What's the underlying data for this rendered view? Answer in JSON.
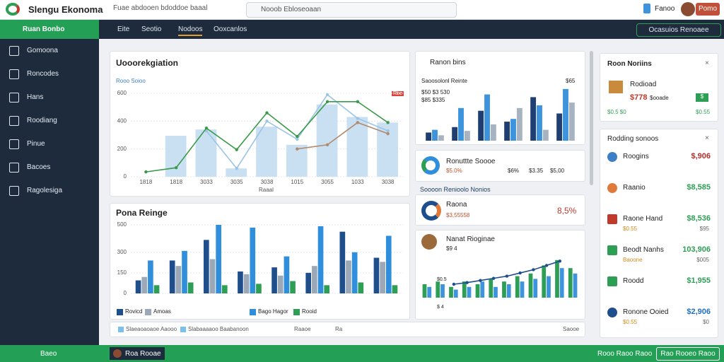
{
  "topbar": {
    "brand": "Slengu Ekonoma",
    "search1": "Fuae abdooen bdoddoe baaal",
    "search2": "Nooob Ebloseoaan",
    "user_action": "Pomo",
    "badge": "Fanoo"
  },
  "navbar": {
    "section": "Ruan Bonbo",
    "tabs": [
      "Eite",
      "Seotio",
      "Nodoos",
      "Ooxcanlos"
    ],
    "button": "Ocasuios Renoaee"
  },
  "sidebar": [
    "Gomoona",
    "Roncodes",
    "Hans",
    "Roodiang",
    "Pinue",
    "Bacoes",
    "Ragolesiga"
  ],
  "main_chart": {
    "type": "bar-line",
    "title": "Uooorekgiation",
    "subtitle": "Rooo Soioo",
    "badge": "Rbe",
    "x_label": "Raaal",
    "categories": [
      "1818",
      "1818",
      "3033",
      "3035",
      "3038",
      "1015",
      "3055",
      "1033",
      "3038"
    ],
    "ylim": [
      0,
      600
    ],
    "yticks": [
      0,
      200,
      400,
      600
    ],
    "grid": true,
    "series": [
      {
        "type": "bar",
        "color": "#c9e0f3",
        "values": [
          null,
          295,
          340,
          60,
          360,
          230,
          520,
          430,
          390
        ]
      },
      {
        "type": "line",
        "color": "#9cc4e4",
        "values": [
          null,
          null,
          330,
          60,
          400,
          270,
          590,
          420,
          330
        ]
      },
      {
        "type": "line",
        "color": "#b08a6e",
        "values": [
          null,
          null,
          null,
          null,
          null,
          200,
          230,
          390,
          310
        ]
      },
      {
        "type": "line",
        "color": "#3a9a4a",
        "values": [
          35,
          65,
          350,
          195,
          460,
          290,
          540,
          540,
          390
        ]
      }
    ]
  },
  "bar_chart": {
    "type": "bar",
    "title": "Pona Reinge",
    "ylim": [
      0,
      500
    ],
    "yticks": [
      0,
      150,
      300,
      500
    ],
    "grid": true,
    "series": [
      {
        "name": "Rovicd",
        "type": "bar",
        "color": "#1f4e8c",
        "values": [
          95,
          240,
          390,
          160,
          190,
          150,
          450,
          260
        ]
      },
      {
        "name": "Amoas",
        "type": "bar",
        "color": "#9aa8b8",
        "values": [
          120,
          200,
          250,
          140,
          130,
          200,
          240,
          230
        ]
      },
      {
        "name": "Bago Hagor",
        "type": "bar",
        "color": "#2f8fdc",
        "values": [
          240,
          310,
          500,
          480,
          270,
          490,
          300,
          420
        ]
      },
      {
        "name": "Rooid",
        "type": "bar",
        "color": "#2e9e55",
        "values": [
          60,
          80,
          60,
          70,
          90,
          60,
          80,
          60
        ]
      }
    ]
  },
  "footer_strip": [
    "Slaeaoaoaoe Aaooo",
    "Slabaaaaoo Baabanoon",
    "Raaoe",
    "Ra",
    "Saooe"
  ],
  "mini_bar": {
    "type": "bar",
    "title": "Ranon bins",
    "subtitle": "Saoosolonl Reinte",
    "lines": [
      "$50 $3 530",
      "$85 $335"
    ],
    "corner": "$65",
    "ylim": [
      0,
      100
    ],
    "series": [
      {
        "type": "bar",
        "color": "#1f3f73",
        "values": [
          15,
          25,
          55,
          35,
          80,
          50
        ]
      },
      {
        "type": "bar",
        "color": "#3d93dc",
        "values": [
          20,
          60,
          85,
          40,
          65,
          95
        ]
      },
      {
        "type": "bar",
        "color": "#a7b3c0",
        "values": [
          10,
          18,
          30,
          60,
          20,
          70
        ]
      }
    ]
  },
  "list_item1": {
    "title": "Ronuttte Soooe",
    "values": [
      "$5.0%",
      "$6%",
      "$3.35",
      "$5,00"
    ]
  },
  "subheading": "Soooon Renioolo Nonios",
  "list_item2": {
    "title": "Raona",
    "sub": "$3,55558",
    "value": "8,5%"
  },
  "mini_line": {
    "type": "bar-line",
    "title": "Nanat Rioginae",
    "sub": "$9 4",
    "labels": [
      "$0.5",
      "$ 4"
    ],
    "ylim": [
      0,
      100
    ],
    "series": [
      {
        "type": "bar",
        "color": "#2e9e55",
        "values": [
          25,
          30,
          20,
          30,
          25,
          35,
          30,
          40,
          45,
          60,
          70,
          55
        ]
      },
      {
        "type": "bar",
        "color": "#3d93dc",
        "values": [
          20,
          25,
          15,
          20,
          30,
          20,
          25,
          30,
          35,
          40,
          55,
          45
        ]
      },
      {
        "type": "line",
        "color": "#1f4e8c",
        "values": [
          null,
          null,
          25,
          28,
          32,
          36,
          40,
          46,
          52,
          60,
          68,
          null
        ]
      }
    ]
  },
  "promo": {
    "title": "Roon Noriins",
    "item": "Rodioad",
    "price": "$778",
    "price_note": "$ooade",
    "badge": "$",
    "foot": "$0.5 $0",
    "foot_right": "$0.55"
  },
  "ranking": {
    "title": "Rodding sonoos",
    "rows": [
      {
        "name": "Roogins",
        "value": "$,906",
        "color": "#b0302a",
        "icon": "#3d7fc4"
      },
      {
        "name": "Raanio",
        "value": "$8,585",
        "color": "#2e9e55",
        "icon": "#e07a3a"
      },
      {
        "name": "Raone Hand",
        "value": "$8,536",
        "color": "#2e9e55",
        "icon": "#c0392b",
        "sub": "$0.55",
        "sub_right": "$95"
      },
      {
        "name": "Beodt Nanhs",
        "value": "103,906",
        "color": "#2e9e55",
        "icon": "#2e9e55",
        "sub": "Baoone",
        "sub_right": "$005"
      },
      {
        "name": "Roodd",
        "value": "$1,955",
        "color": "#2e9e55",
        "icon": "#2e9e55"
      },
      {
        "name": "Ronone Ooied",
        "value": "$2,906",
        "color": "#1f6fc4",
        "icon": "#1f4e8c",
        "sub": "$0.55",
        "sub_right": "$0"
      }
    ]
  },
  "bottombar": {
    "left": "Baeo",
    "user": "Roa Rooae",
    "right": "Rooo Raoo Raoo",
    "button": "Rao Rooeo Raoo"
  }
}
